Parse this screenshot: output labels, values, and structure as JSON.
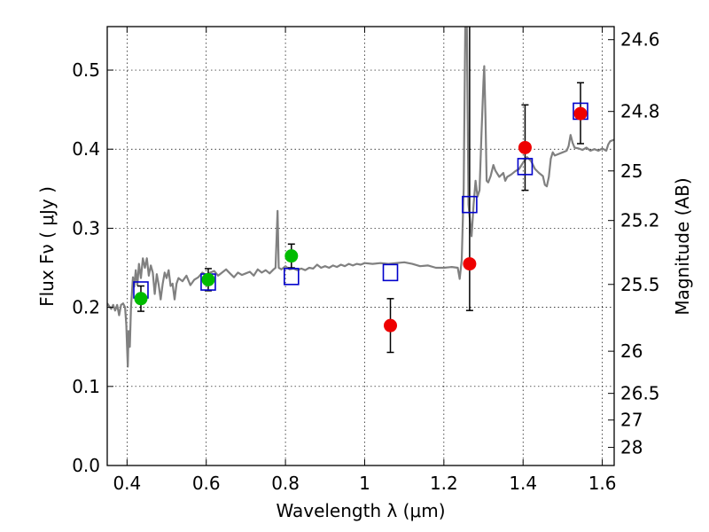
{
  "chart_data": {
    "type": "scatter",
    "title": "",
    "xlabel": "Wavelength  λ (μm)",
    "ylabel": "Flux  Fν  ( μJy )",
    "ylabel_right": "Magnitude (AB)",
    "xlim": [
      0.35,
      1.63
    ],
    "ylim": [
      0.0,
      0.555
    ],
    "grid": true,
    "x_ticks": [
      0.4,
      0.6,
      0.8,
      1.0,
      1.2,
      1.4,
      1.6
    ],
    "x_tick_labels": [
      "0.4",
      "0.6",
      "0.8",
      "1",
      "1.2",
      "1.4",
      "1.6"
    ],
    "y_ticks": [
      0.0,
      0.1,
      0.2,
      0.3,
      0.4,
      0.5
    ],
    "y_tick_labels": [
      "0.0",
      "0.1",
      "0.2",
      "0.3",
      "0.4",
      "0.5"
    ],
    "right_ticks": [
      {
        "flux": 0.5385,
        "label": "24.6"
      },
      {
        "flux": 0.4477,
        "label": "24.8"
      },
      {
        "flux": 0.3725,
        "label": "25"
      },
      {
        "flux": 0.3098,
        "label": "25.2"
      },
      {
        "flux": 0.229,
        "label": "25.5"
      },
      {
        "flux": 0.1445,
        "label": "26"
      },
      {
        "flux": 0.0912,
        "label": "26.5"
      },
      {
        "flux": 0.0575,
        "label": "27"
      },
      {
        "flux": 0.0229,
        "label": "28"
      }
    ],
    "series": [
      {
        "type": "line",
        "color": "#808080",
        "points": [
          [
            0.35,
            0.205
          ],
          [
            0.36,
            0.198
          ],
          [
            0.365,
            0.203
          ],
          [
            0.37,
            0.196
          ],
          [
            0.375,
            0.203
          ],
          [
            0.38,
            0.19
          ],
          [
            0.385,
            0.203
          ],
          [
            0.39,
            0.205
          ],
          [
            0.395,
            0.2
          ],
          [
            0.398,
            0.178
          ],
          [
            0.4,
            0.152
          ],
          [
            0.402,
            0.125
          ],
          [
            0.404,
            0.17
          ],
          [
            0.407,
            0.15
          ],
          [
            0.41,
            0.2
          ],
          [
            0.415,
            0.238
          ],
          [
            0.418,
            0.226
          ],
          [
            0.422,
            0.247
          ],
          [
            0.426,
            0.228
          ],
          [
            0.43,
            0.255
          ],
          [
            0.435,
            0.237
          ],
          [
            0.44,
            0.262
          ],
          [
            0.445,
            0.25
          ],
          [
            0.45,
            0.262
          ],
          [
            0.455,
            0.24
          ],
          [
            0.46,
            0.253
          ],
          [
            0.465,
            0.244
          ],
          [
            0.47,
            0.217
          ],
          [
            0.475,
            0.242
          ],
          [
            0.48,
            0.228
          ],
          [
            0.485,
            0.21
          ],
          [
            0.49,
            0.23
          ],
          [
            0.495,
            0.244
          ],
          [
            0.5,
            0.237
          ],
          [
            0.505,
            0.247
          ],
          [
            0.51,
            0.227
          ],
          [
            0.515,
            0.23
          ],
          [
            0.52,
            0.21
          ],
          [
            0.525,
            0.23
          ],
          [
            0.53,
            0.237
          ],
          [
            0.54,
            0.233
          ],
          [
            0.55,
            0.24
          ],
          [
            0.56,
            0.228
          ],
          [
            0.57,
            0.235
          ],
          [
            0.58,
            0.238
          ],
          [
            0.59,
            0.244
          ],
          [
            0.6,
            0.241
          ],
          [
            0.61,
            0.244
          ],
          [
            0.62,
            0.246
          ],
          [
            0.63,
            0.24
          ],
          [
            0.64,
            0.244
          ],
          [
            0.65,
            0.248
          ],
          [
            0.66,
            0.243
          ],
          [
            0.67,
            0.238
          ],
          [
            0.68,
            0.244
          ],
          [
            0.69,
            0.241
          ],
          [
            0.7,
            0.243
          ],
          [
            0.71,
            0.245
          ],
          [
            0.72,
            0.24
          ],
          [
            0.73,
            0.248
          ],
          [
            0.74,
            0.244
          ],
          [
            0.75,
            0.247
          ],
          [
            0.76,
            0.243
          ],
          [
            0.77,
            0.248
          ],
          [
            0.775,
            0.25
          ],
          [
            0.78,
            0.322
          ],
          [
            0.783,
            0.25
          ],
          [
            0.79,
            0.248
          ],
          [
            0.8,
            0.252
          ],
          [
            0.81,
            0.248
          ],
          [
            0.82,
            0.249
          ],
          [
            0.83,
            0.247
          ],
          [
            0.84,
            0.249
          ],
          [
            0.85,
            0.247
          ],
          [
            0.86,
            0.25
          ],
          [
            0.87,
            0.249
          ],
          [
            0.88,
            0.254
          ],
          [
            0.89,
            0.25
          ],
          [
            0.9,
            0.252
          ],
          [
            0.91,
            0.25
          ],
          [
            0.92,
            0.253
          ],
          [
            0.93,
            0.251
          ],
          [
            0.94,
            0.254
          ],
          [
            0.95,
            0.252
          ],
          [
            0.96,
            0.255
          ],
          [
            0.97,
            0.253
          ],
          [
            0.98,
            0.255
          ],
          [
            0.99,
            0.254
          ],
          [
            1.0,
            0.256
          ],
          [
            1.02,
            0.255
          ],
          [
            1.04,
            0.256
          ],
          [
            1.06,
            0.255
          ],
          [
            1.08,
            0.256
          ],
          [
            1.1,
            0.257
          ],
          [
            1.12,
            0.255
          ],
          [
            1.14,
            0.252
          ],
          [
            1.16,
            0.253
          ],
          [
            1.18,
            0.25
          ],
          [
            1.2,
            0.25
          ],
          [
            1.22,
            0.251
          ],
          [
            1.235,
            0.25
          ],
          [
            1.24,
            0.236
          ],
          [
            1.245,
            0.26
          ],
          [
            1.25,
            0.35
          ],
          [
            1.254,
            0.555
          ],
          [
            1.258,
            0.555
          ],
          [
            1.262,
            0.33
          ],
          [
            1.266,
            0.31
          ],
          [
            1.27,
            0.29
          ],
          [
            1.275,
            0.33
          ],
          [
            1.28,
            0.36
          ],
          [
            1.285,
            0.34
          ],
          [
            1.29,
            0.348
          ],
          [
            1.295,
            0.42
          ],
          [
            1.3,
            0.485
          ],
          [
            1.302,
            0.505
          ],
          [
            1.305,
            0.44
          ],
          [
            1.308,
            0.36
          ],
          [
            1.312,
            0.358
          ],
          [
            1.318,
            0.366
          ],
          [
            1.325,
            0.38
          ],
          [
            1.33,
            0.373
          ],
          [
            1.34,
            0.365
          ],
          [
            1.35,
            0.37
          ],
          [
            1.355,
            0.36
          ],
          [
            1.36,
            0.365
          ],
          [
            1.37,
            0.368
          ],
          [
            1.38,
            0.372
          ],
          [
            1.39,
            0.375
          ],
          [
            1.4,
            0.383
          ],
          [
            1.41,
            0.39
          ],
          [
            1.42,
            0.385
          ],
          [
            1.43,
            0.375
          ],
          [
            1.44,
            0.37
          ],
          [
            1.45,
            0.366
          ],
          [
            1.455,
            0.355
          ],
          [
            1.46,
            0.353
          ],
          [
            1.465,
            0.365
          ],
          [
            1.47,
            0.388
          ],
          [
            1.475,
            0.396
          ],
          [
            1.48,
            0.392
          ],
          [
            1.49,
            0.394
          ],
          [
            1.5,
            0.396
          ],
          [
            1.51,
            0.398
          ],
          [
            1.515,
            0.404
          ],
          [
            1.52,
            0.418
          ],
          [
            1.525,
            0.408
          ],
          [
            1.53,
            0.402
          ],
          [
            1.54,
            0.401
          ],
          [
            1.55,
            0.399
          ],
          [
            1.56,
            0.402
          ],
          [
            1.57,
            0.398
          ],
          [
            1.58,
            0.4
          ],
          [
            1.59,
            0.398
          ],
          [
            1.6,
            0.401
          ],
          [
            1.61,
            0.398
          ],
          [
            1.615,
            0.406
          ],
          [
            1.62,
            0.41
          ],
          [
            1.63,
            0.412
          ]
        ]
      },
      {
        "type": "open_square",
        "color": "#0000cc",
        "points": [
          [
            0.435,
            0.222
          ],
          [
            0.605,
            0.232
          ],
          [
            0.815,
            0.239
          ],
          [
            1.065,
            0.244
          ],
          [
            1.265,
            0.33
          ],
          [
            1.405,
            0.378
          ],
          [
            1.545,
            0.448
          ]
        ]
      },
      {
        "type": "circle",
        "color": "#00bb00",
        "points": [
          {
            "x": 0.435,
            "y": 0.211,
            "lo": 0.195,
            "hi": 0.227
          },
          {
            "x": 0.605,
            "y": 0.235,
            "lo": 0.221,
            "hi": 0.249
          },
          {
            "x": 0.815,
            "y": 0.265,
            "lo": 0.25,
            "hi": 0.28
          }
        ]
      },
      {
        "type": "circle",
        "color": "#ee0000",
        "points": [
          {
            "x": 1.065,
            "y": 0.177,
            "lo": 0.143,
            "hi": 0.211
          },
          {
            "x": 1.265,
            "y": 0.255,
            "lo": 0.196,
            "hi": 0.555
          },
          {
            "x": 1.405,
            "y": 0.402,
            "lo": 0.348,
            "hi": 0.456
          },
          {
            "x": 1.545,
            "y": 0.445,
            "lo": 0.407,
            "hi": 0.484
          }
        ]
      }
    ]
  }
}
